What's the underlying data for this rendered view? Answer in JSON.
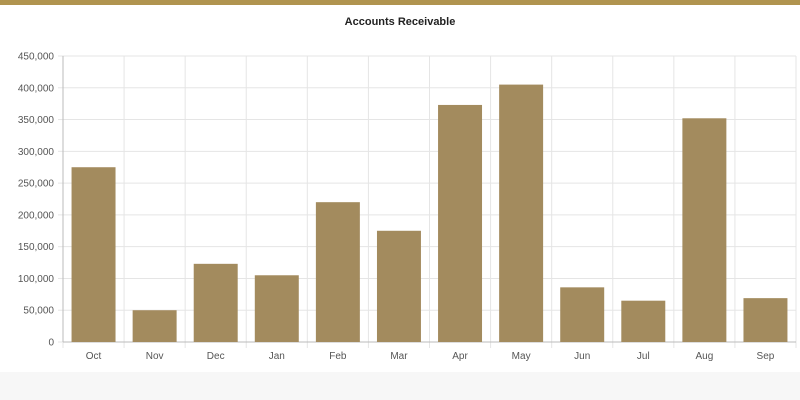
{
  "colors": {
    "accent": "#b0944f",
    "bar": "#a38b5e",
    "grid": "#e5e5e5",
    "axis": "#bbbbbb"
  },
  "chart_data": {
    "type": "bar",
    "title": "Accounts Receivable",
    "xlabel": "",
    "ylabel": "",
    "categories": [
      "Oct",
      "Nov",
      "Dec",
      "Jan",
      "Feb",
      "Mar",
      "Apr",
      "May",
      "Jun",
      "Jul",
      "Aug",
      "Sep"
    ],
    "values": [
      275000,
      50000,
      123000,
      105000,
      220000,
      175000,
      373000,
      405000,
      86000,
      65000,
      352000,
      69000
    ],
    "ylim": [
      0,
      450000
    ],
    "yticks": [
      0,
      50000,
      100000,
      150000,
      200000,
      250000,
      300000,
      350000,
      400000,
      450000
    ],
    "ytick_labels": [
      "0",
      "50,000",
      "100,000",
      "150,000",
      "200,000",
      "250,000",
      "300,000",
      "350,000",
      "400,000",
      "450,000"
    ],
    "grid": true,
    "legend": "none"
  }
}
